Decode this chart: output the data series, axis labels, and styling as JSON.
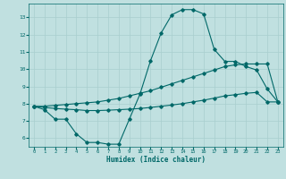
{
  "xlabel": "Humidex (Indice chaleur)",
  "bg_color": "#c0e0e0",
  "line_color": "#006868",
  "grid_color": "#a8cece",
  "xlim": [
    -0.5,
    23.5
  ],
  "ylim": [
    5.5,
    13.8
  ],
  "xticks": [
    0,
    1,
    2,
    3,
    4,
    5,
    6,
    7,
    8,
    9,
    10,
    11,
    12,
    13,
    14,
    15,
    16,
    17,
    18,
    19,
    20,
    21,
    22,
    23
  ],
  "yticks": [
    6,
    7,
    8,
    9,
    10,
    11,
    12,
    13
  ],
  "line1_x": [
    0,
    1,
    2,
    3,
    4,
    5,
    6,
    7,
    8,
    9,
    10,
    11,
    12,
    13,
    14,
    15,
    16,
    17,
    18,
    19,
    20,
    21,
    22,
    23
  ],
  "line1_y": [
    7.85,
    7.65,
    7.1,
    7.1,
    6.25,
    5.75,
    5.75,
    5.65,
    5.65,
    7.1,
    8.55,
    10.5,
    12.1,
    13.15,
    13.45,
    13.45,
    13.2,
    11.15,
    10.45,
    10.45,
    10.15,
    9.95,
    8.85,
    8.1
  ],
  "line2_x": [
    0,
    1,
    2,
    3,
    4,
    5,
    6,
    7,
    8,
    9,
    10,
    11,
    12,
    13,
    14,
    15,
    16,
    17,
    18,
    19,
    20,
    21,
    22,
    23
  ],
  "line2_y": [
    7.85,
    7.85,
    7.9,
    7.95,
    8.0,
    8.05,
    8.1,
    8.2,
    8.3,
    8.45,
    8.6,
    8.75,
    8.95,
    9.15,
    9.35,
    9.55,
    9.75,
    9.95,
    10.15,
    10.25,
    10.3,
    10.3,
    10.3,
    8.1
  ],
  "line3_x": [
    0,
    1,
    2,
    3,
    4,
    5,
    6,
    7,
    8,
    9,
    10,
    11,
    12,
    13,
    14,
    15,
    16,
    17,
    18,
    19,
    20,
    21,
    22,
    23
  ],
  "line3_y": [
    7.85,
    7.78,
    7.72,
    7.68,
    7.65,
    7.6,
    7.6,
    7.62,
    7.65,
    7.68,
    7.72,
    7.78,
    7.85,
    7.92,
    8.0,
    8.1,
    8.2,
    8.32,
    8.45,
    8.52,
    8.6,
    8.65,
    8.1,
    8.1
  ]
}
